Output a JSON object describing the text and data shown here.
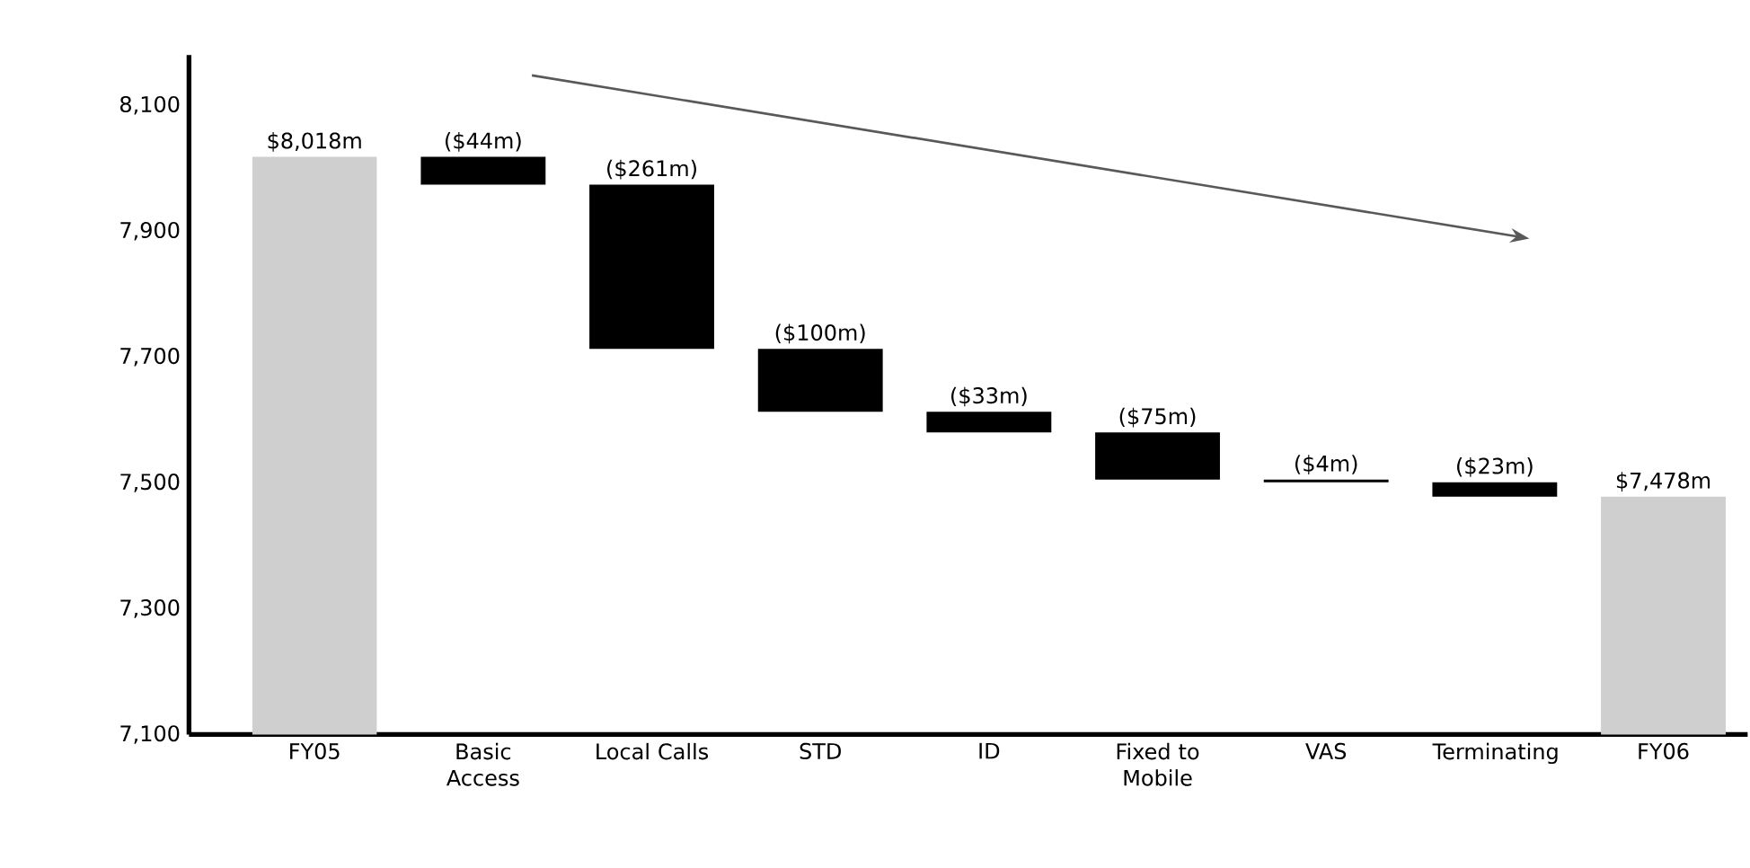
{
  "chart_data": {
    "type": "bar",
    "categories": [
      "FY05",
      "Basic Access",
      "Local Calls",
      "STD",
      "ID",
      "Fixed to Mobile",
      "VAS",
      "Terminating",
      "FY06"
    ],
    "values": [
      8018,
      -44,
      -261,
      -100,
      -33,
      -75,
      -4,
      -23,
      7478
    ],
    "base": [
      null,
      8018,
      7974,
      7713,
      7613,
      7580,
      7505,
      7501,
      null
    ],
    "colors": [
      "#cfcfcf",
      "#000000",
      "#000000",
      "#000000",
      "#000000",
      "#000000",
      "#000000",
      "#000000",
      "#cfcfcf"
    ],
    "value_labels": [
      "$8,018m",
      "($44m)",
      "($261m)",
      "($100m)",
      "($33m)",
      "($75m)",
      "($4m)",
      "($23m)",
      "$7,478m"
    ],
    "ylim": [
      7100,
      8180
    ],
    "yticks": [
      {
        "value": 7100,
        "label": "7,100"
      },
      {
        "value": 7300,
        "label": "7,300"
      },
      {
        "value": 7500,
        "label": "7,500"
      },
      {
        "value": 7700,
        "label": "7,700"
      },
      {
        "value": 7900,
        "label": "7,900"
      },
      {
        "value": 8100,
        "label": "8,100"
      }
    ],
    "grid": false
  }
}
